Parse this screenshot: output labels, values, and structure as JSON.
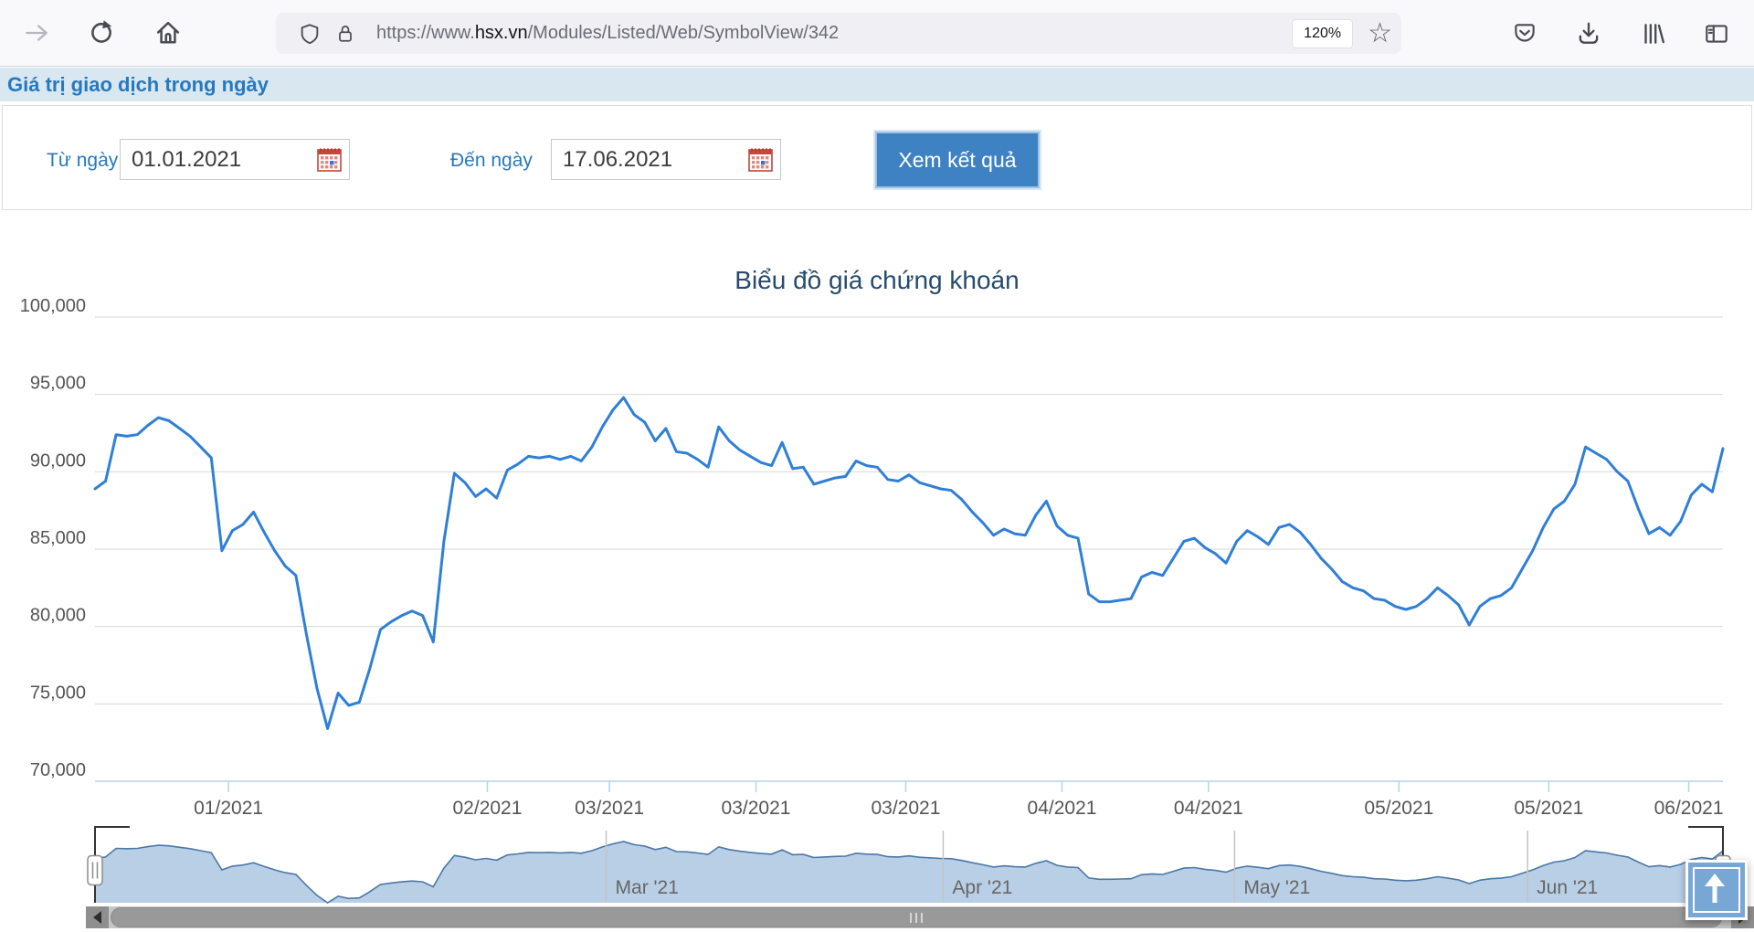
{
  "browser": {
    "url_prefix": "https://www.",
    "url_domain": "hsx.vn",
    "url_path": "/Modules/Listed/Web/SymbolView/342",
    "zoom_level": "120%"
  },
  "page": {
    "section_header": "Giá trị giao dịch trong ngày",
    "form": {
      "from_label": "Từ ngày",
      "from_value": "01.01.2021",
      "to_label": "Đến ngày",
      "to_value": "17.06.2021",
      "submit_label": "Xem kết quả"
    }
  },
  "chart_data": {
    "type": "line",
    "title": "Biểu đồ giá chứng khoán",
    "ylim": [
      70000,
      100000
    ],
    "y_tick_step": 5000,
    "y_tick_labels": [
      "100,000",
      "95,000",
      "90,000",
      "85,000",
      "80,000",
      "75,000",
      "70,000"
    ],
    "x_ticks": [
      {
        "label": "01/2021",
        "pos": 0.082
      },
      {
        "label": "02/2021",
        "pos": 0.241
      },
      {
        "label": "03/2021",
        "pos": 0.316
      },
      {
        "label": "03/2021",
        "pos": 0.406
      },
      {
        "label": "03/2021",
        "pos": 0.498
      },
      {
        "label": "04/2021",
        "pos": 0.594
      },
      {
        "label": "04/2021",
        "pos": 0.684
      },
      {
        "label": "05/2021",
        "pos": 0.801
      },
      {
        "label": "05/2021",
        "pos": 0.893
      },
      {
        "label": "06/2021",
        "pos": 0.979
      }
    ],
    "navigator_labels": [
      {
        "label": "Mar '21",
        "pos": 0.314
      },
      {
        "label": "Apr '21",
        "pos": 0.521
      },
      {
        "label": "May '21",
        "pos": 0.7
      },
      {
        "label": "Jun '21",
        "pos": 0.88
      }
    ],
    "series": [
      {
        "name": "Giá chứng khoán",
        "values": [
          88900,
          89400,
          92400,
          92300,
          92400,
          93000,
          93500,
          93300,
          92800,
          92300,
          91600,
          90900,
          84900,
          86200,
          86600,
          87400,
          86100,
          84900,
          83900,
          83300,
          79500,
          76000,
          73400,
          75700,
          74900,
          75100,
          77300,
          79800,
          80300,
          80700,
          81000,
          80700,
          79000,
          85500,
          89900,
          89300,
          88400,
          88900,
          88300,
          90100,
          90500,
          91000,
          90900,
          91000,
          90800,
          91000,
          90700,
          91600,
          92900,
          94000,
          94800,
          93700,
          93200,
          92000,
          92800,
          91300,
          91200,
          90800,
          90300,
          92900,
          92000,
          91400,
          91000,
          90600,
          90400,
          91900,
          90200,
          90300,
          89200,
          89400,
          89600,
          89700,
          90700,
          90400,
          90300,
          89500,
          89400,
          89800,
          89300,
          89100,
          88900,
          88800,
          88200,
          87400,
          86700,
          85900,
          86300,
          86000,
          85900,
          87200,
          88100,
          86500,
          85900,
          85700,
          82100,
          81600,
          81600,
          81700,
          81800,
          83200,
          83500,
          83300,
          84400,
          85500,
          85700,
          85100,
          84700,
          84100,
          85500,
          86200,
          85800,
          85300,
          86400,
          86600,
          86100,
          85300,
          84400,
          83700,
          82900,
          82500,
          82300,
          81800,
          81700,
          81300,
          81100,
          81300,
          81800,
          82500,
          82000,
          81400,
          80100,
          81300,
          81800,
          82000,
          82500,
          83700,
          84900,
          86400,
          87600,
          88100,
          89200,
          91600,
          91200,
          90800,
          90000,
          89400,
          87600,
          86000,
          86400,
          85900,
          86800,
          88500,
          89200,
          88700,
          91500
        ]
      }
    ],
    "colors": {
      "line": "#2f7fd8",
      "grid": "#d8d8d8",
      "axis": "#b8d2ea",
      "label": "#555555",
      "nav_fill": "#b9cfe6",
      "nav_line": "#4a77a8",
      "nav_grid": "#c4c4c4",
      "nav_label": "#666666",
      "title": "#274b6d"
    }
  }
}
